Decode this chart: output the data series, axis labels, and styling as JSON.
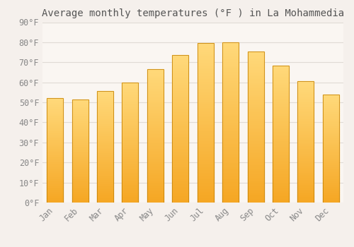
{
  "title": "Average monthly temperatures (°F ) in La Mohammedia",
  "months": [
    "Jan",
    "Feb",
    "Mar",
    "Apr",
    "May",
    "Jun",
    "Jul",
    "Aug",
    "Sep",
    "Oct",
    "Nov",
    "Dec"
  ],
  "values": [
    52,
    51.5,
    55.5,
    60,
    66.5,
    73.5,
    79.5,
    80,
    75.5,
    68.5,
    60.5,
    54
  ],
  "bar_color_bottom": "#F5A623",
  "bar_color_top": "#FFD97A",
  "bar_outline_color": "#C8860A",
  "ylim": [
    0,
    90
  ],
  "yticks": [
    0,
    10,
    20,
    30,
    40,
    50,
    60,
    70,
    80,
    90
  ],
  "background_color": "#F5F0EC",
  "plot_bg_color": "#FAF6F2",
  "grid_color": "#E0DAD5",
  "title_fontsize": 10,
  "tick_fontsize": 8.5,
  "font_family": "monospace",
  "tick_color": "#888888",
  "title_color": "#555555"
}
